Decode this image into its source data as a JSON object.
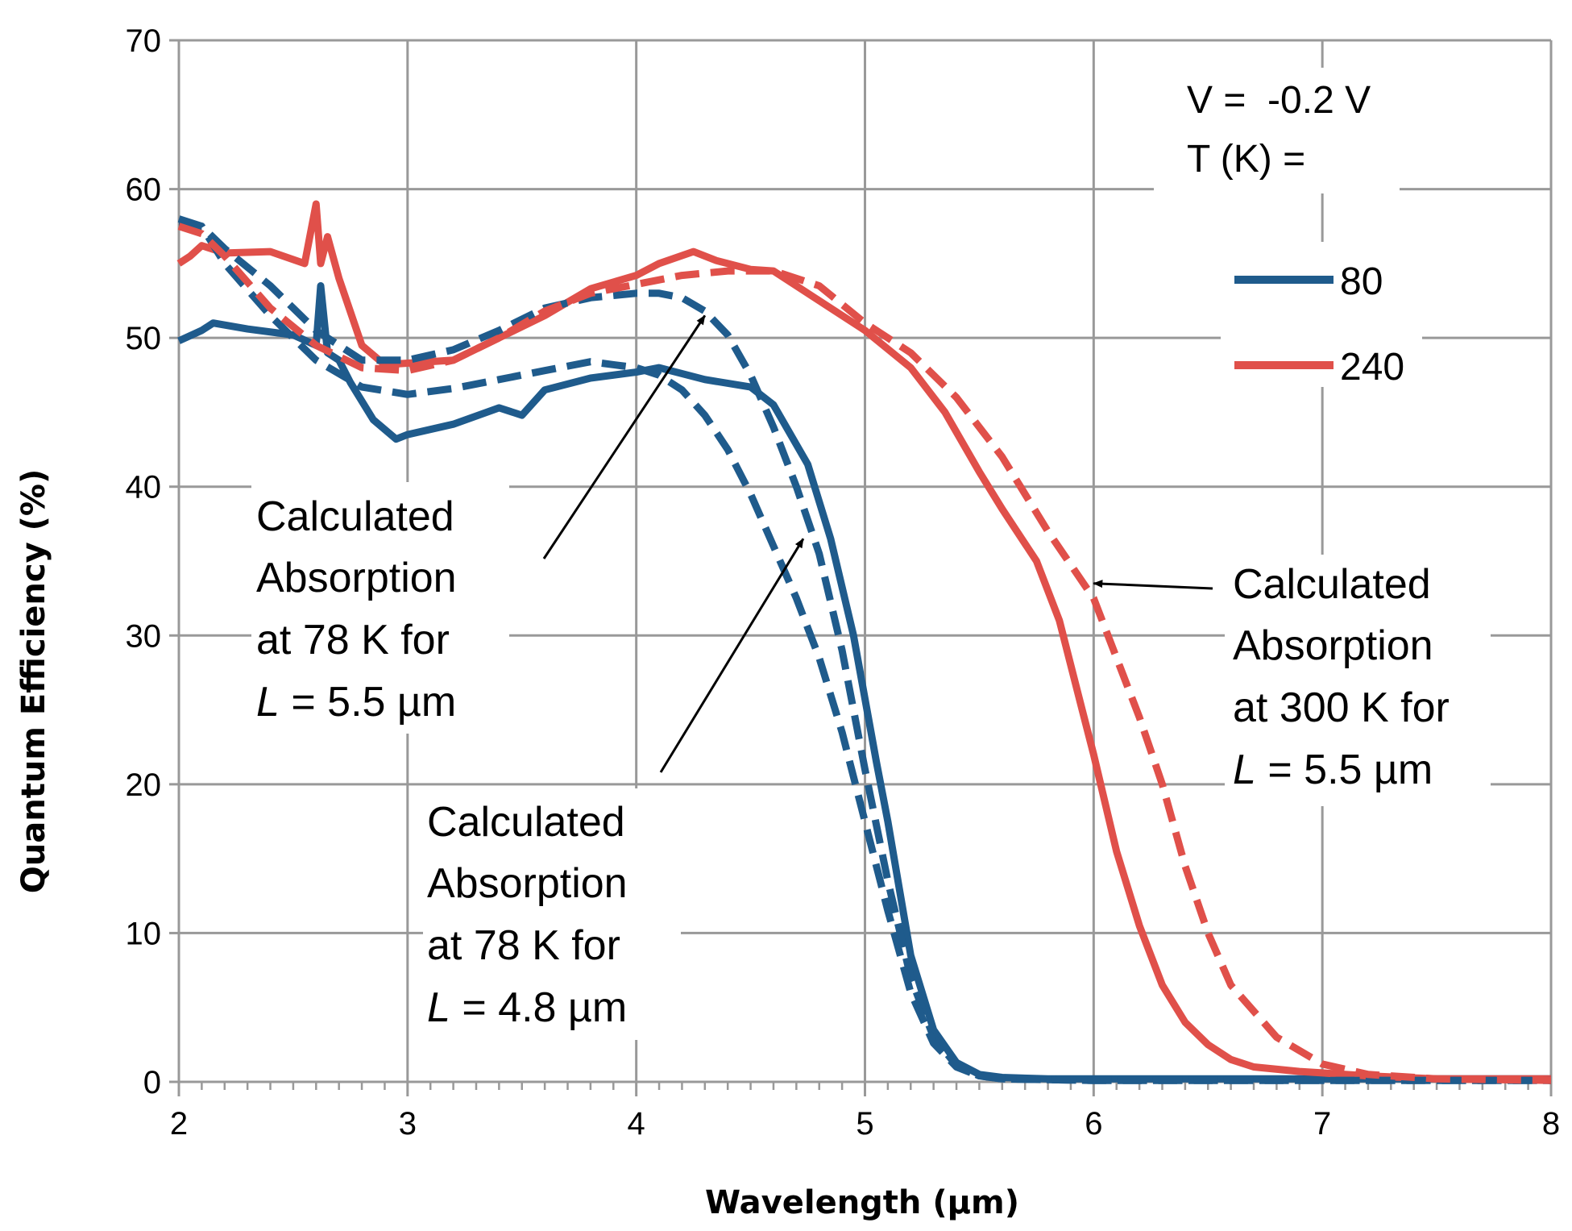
{
  "chart_data": {
    "type": "line",
    "title": "",
    "xlabel": "Wavelength (µm)",
    "ylabel": "Quantum Efficiency (%)",
    "xlim": [
      2,
      8
    ],
    "ylim": [
      0,
      70
    ],
    "x_ticks": [
      "2",
      "3",
      "4",
      "5",
      "6",
      "7",
      "8"
    ],
    "y_ticks": [
      "0",
      "10",
      "20",
      "30",
      "40",
      "50",
      "60",
      "70"
    ],
    "grid": true,
    "colors": {
      "blue": "#1f5b8c",
      "red": "#e0504a",
      "grid": "#999999"
    },
    "conditions": {
      "voltage": "V =  -0.2 V",
      "temperature": "T (K) ="
    },
    "legend": [
      {
        "label": "80",
        "color": "#1f5b8c"
      },
      {
        "label": "240",
        "color": "#e0504a"
      }
    ],
    "series": [
      {
        "name": "80",
        "style": "solid",
        "color": "#1f5b8c",
        "x": [
          2.0,
          2.1,
          2.15,
          2.3,
          2.5,
          2.6,
          2.62,
          2.65,
          2.7,
          2.75,
          2.85,
          2.95,
          3.0,
          3.2,
          3.4,
          3.5,
          3.6,
          3.8,
          4.0,
          4.1,
          4.3,
          4.5,
          4.6,
          4.75,
          4.85,
          4.95,
          5.05,
          5.1,
          5.15,
          5.2,
          5.3,
          5.4,
          5.5,
          5.6,
          5.8,
          6.0,
          7.0,
          8.0
        ],
        "y": [
          49.8,
          50.5,
          51.0,
          50.6,
          50.2,
          49.5,
          53.5,
          49.0,
          48.5,
          47.0,
          44.5,
          43.2,
          43.5,
          44.2,
          45.3,
          44.8,
          46.5,
          47.3,
          47.7,
          48.0,
          47.2,
          46.7,
          45.5,
          41.5,
          36.5,
          30.0,
          21.5,
          17.5,
          13.0,
          8.5,
          3.5,
          1.3,
          0.5,
          0.3,
          0.2,
          0.2,
          0.2,
          0.2
        ]
      },
      {
        "name": "240",
        "style": "solid",
        "color": "#e0504a",
        "x": [
          2.0,
          2.05,
          2.1,
          2.2,
          2.4,
          2.55,
          2.6,
          2.62,
          2.65,
          2.7,
          2.8,
          2.9,
          3.0,
          3.2,
          3.4,
          3.6,
          3.8,
          4.0,
          4.1,
          4.25,
          4.35,
          4.5,
          4.6,
          4.8,
          5.0,
          5.2,
          5.35,
          5.5,
          5.6,
          5.75,
          5.85,
          5.95,
          6.0,
          6.1,
          6.2,
          6.3,
          6.4,
          6.5,
          6.6,
          6.7,
          6.9,
          7.0,
          7.2,
          7.5,
          8.0
        ],
        "y": [
          55.0,
          55.5,
          56.2,
          55.7,
          55.8,
          55.0,
          59.0,
          55.0,
          56.8,
          54.0,
          49.5,
          48.2,
          48.3,
          48.5,
          50.0,
          51.5,
          53.3,
          54.2,
          55.0,
          55.8,
          55.2,
          54.6,
          54.5,
          52.5,
          50.5,
          48.0,
          45.0,
          41.0,
          38.5,
          35.0,
          31.0,
          25.0,
          22.0,
          15.5,
          10.5,
          6.5,
          4.0,
          2.5,
          1.5,
          1.0,
          0.7,
          0.6,
          0.4,
          0.2,
          0.2
        ]
      },
      {
        "name": "Calculated Absorption at 78 K for L = 5.5 µm",
        "style": "dashed",
        "color": "#1f5b8c",
        "x": [
          2.0,
          2.1,
          2.2,
          2.4,
          2.6,
          2.8,
          3.0,
          3.2,
          3.4,
          3.6,
          3.8,
          4.0,
          4.1,
          4.2,
          4.3,
          4.4,
          4.5,
          4.6,
          4.7,
          4.8,
          4.9,
          5.0,
          5.1,
          5.2,
          5.3,
          5.4,
          5.5,
          5.6,
          6.0,
          7.0,
          8.0
        ],
        "y": [
          58.0,
          57.5,
          56.0,
          53.5,
          50.5,
          48.5,
          48.5,
          49.2,
          50.5,
          52.0,
          52.7,
          53.0,
          53.0,
          52.7,
          51.8,
          50.2,
          47.5,
          44.0,
          40.0,
          35.5,
          29.0,
          21.0,
          13.5,
          7.0,
          3.0,
          1.1,
          0.4,
          0.2,
          0.1,
          0.1,
          0.1
        ]
      },
      {
        "name": "Calculated Absorption at 78 K for L = 4.8 µm",
        "style": "dashed",
        "color": "#1f5b8c",
        "x": [
          2.0,
          2.1,
          2.2,
          2.4,
          2.6,
          2.8,
          3.0,
          3.2,
          3.4,
          3.6,
          3.8,
          4.0,
          4.1,
          4.2,
          4.3,
          4.4,
          4.5,
          4.6,
          4.7,
          4.8,
          4.9,
          5.0,
          5.1,
          5.2,
          5.3,
          5.4,
          5.5,
          5.6,
          6.0,
          7.0,
          8.0
        ],
        "y": [
          57.5,
          57.5,
          55.0,
          51.5,
          48.5,
          46.7,
          46.2,
          46.6,
          47.2,
          47.8,
          48.4,
          48.0,
          47.5,
          46.5,
          44.8,
          42.5,
          39.5,
          36.0,
          32.5,
          28.5,
          23.5,
          17.5,
          11.5,
          6.0,
          2.6,
          1.0,
          0.4,
          0.2,
          0.1,
          0.1,
          0.1
        ]
      },
      {
        "name": "Calculated Absorption at 300 K for L = 5.5 µm",
        "style": "dashed",
        "color": "#e0504a",
        "x": [
          2.0,
          2.1,
          2.2,
          2.4,
          2.6,
          2.8,
          3.0,
          3.2,
          3.4,
          3.6,
          3.8,
          4.0,
          4.2,
          4.4,
          4.6,
          4.8,
          5.0,
          5.2,
          5.4,
          5.6,
          5.8,
          6.0,
          6.2,
          6.3,
          6.4,
          6.5,
          6.6,
          6.8,
          7.0,
          7.2,
          7.5,
          8.0
        ],
        "y": [
          57.5,
          57.0,
          55.5,
          52.0,
          49.5,
          48.0,
          47.8,
          48.5,
          50.0,
          51.8,
          53.0,
          53.6,
          54.2,
          54.5,
          54.5,
          53.5,
          51.0,
          49.0,
          46.0,
          42.0,
          37.0,
          32.5,
          24.5,
          20.0,
          14.5,
          10.0,
          6.5,
          3.0,
          1.2,
          0.5,
          0.2,
          0.1
        ]
      }
    ],
    "annotations": [
      {
        "lines": [
          "Calculated",
          "Absorption",
          "at 78 K for"
        ],
        "l_prefix": "L",
        "l_value": " = 5.5 µm",
        "arrow_to": [
          4.3,
          51.5
        ]
      },
      {
        "lines": [
          "Calculated",
          "Absorption",
          "at 78 K for"
        ],
        "l_prefix": "L",
        "l_value": " = 4.8 µm",
        "arrow_to": [
          4.73,
          36.5
        ]
      },
      {
        "lines": [
          "Calculated",
          "Absorption",
          "at 300 K for"
        ],
        "l_prefix": "L",
        "l_value": " = 5.5 µm",
        "arrow_to": [
          6.0,
          33.5
        ]
      }
    ]
  }
}
